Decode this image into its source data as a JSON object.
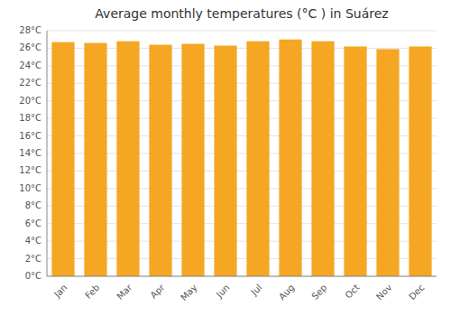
{
  "chart_data": {
    "type": "bar",
    "title": "Average monthly temperatures (°C ) in Suárez",
    "categories": [
      "Jan",
      "Feb",
      "Mar",
      "Apr",
      "May",
      "Jun",
      "Jul",
      "Aug",
      "Sep",
      "Oct",
      "Nov",
      "Dec"
    ],
    "values": [
      26.7,
      26.6,
      26.8,
      26.4,
      26.5,
      26.3,
      26.8,
      27.0,
      26.8,
      26.2,
      25.9,
      26.2
    ],
    "color": "#F5A623",
    "ylim": [
      0,
      28
    ],
    "yticks": [
      {
        "value": 0,
        "label": "0°C"
      },
      {
        "value": 2,
        "label": "2°C"
      },
      {
        "value": 4,
        "label": "4°C"
      },
      {
        "value": 6,
        "label": "6°C"
      },
      {
        "value": 8,
        "label": "8°C"
      },
      {
        "value": 10,
        "label": "10°C"
      },
      {
        "value": 12,
        "label": "12°C"
      },
      {
        "value": 14,
        "label": "14°C"
      },
      {
        "value": 16,
        "label": "16°C"
      },
      {
        "value": 18,
        "label": "18°C"
      },
      {
        "value": 20,
        "label": "20°C"
      },
      {
        "value": 22,
        "label": "22°C"
      },
      {
        "value": 24,
        "label": "24°C"
      },
      {
        "value": 26,
        "label": "26°C"
      },
      {
        "value": 28,
        "label": "28°C"
      }
    ],
    "grid": true
  }
}
